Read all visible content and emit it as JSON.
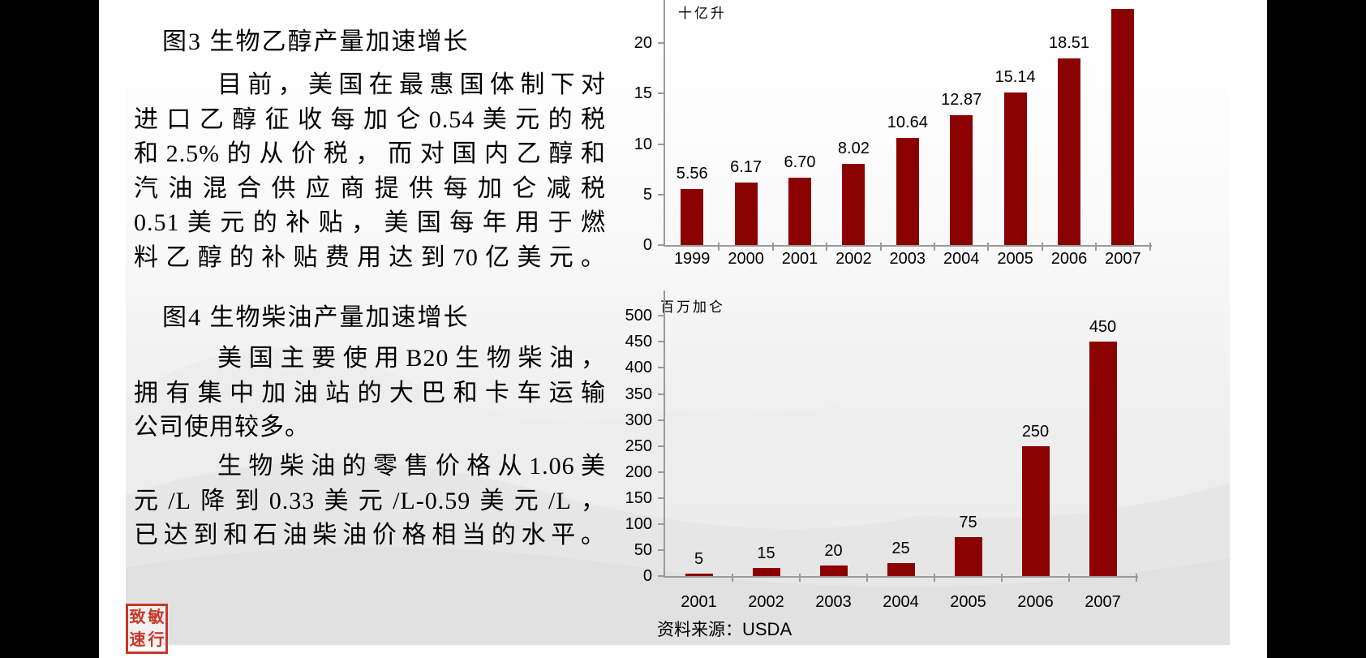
{
  "left_panel": {
    "fig3_title": "图3 生物乙醇产量加速增长",
    "fig3_paragraph_lines": [
      "目前，美国在最惠国体制下对",
      "进口乙醇征收每加仑0.54美元的税",
      "和2.5%的从价税，而对国内乙醇和",
      "汽油混合供应商提供每加仑减税",
      "0.51美元的补贴，美国每年用于燃",
      "料乙醇的补贴费用达到70亿美元。"
    ],
    "fig4_title": "图4 生物柴油产量加速增长",
    "fig4_paragraph1_lines": [
      "美国主要使用B20生物柴油，",
      "拥有集中加油站的大巴和卡车运输",
      "公司使用较多。"
    ],
    "fig4_paragraph2_lines": [
      "生物柴油的零售价格从1.06美",
      "元/L降到0.33美元/L-0.59美元/L，",
      "已达到和石油柴油价格相当的水平。"
    ],
    "seal_chars": [
      "致",
      "敏",
      "速",
      "行"
    ]
  },
  "source": {
    "label": "资料来源：",
    "value": "USDA"
  },
  "colors": {
    "bar": "#8B0000",
    "axis": "#9a9a9a",
    "seal_red": "#c5392a"
  },
  "chart_data": [
    {
      "type": "bar",
      "title": "图3 生物乙醇产量加速增长",
      "unit_label": "十亿升",
      "categories": [
        "1999",
        "2000",
        "2001",
        "2002",
        "2003",
        "2004",
        "2005",
        "2006",
        "2007"
      ],
      "values": [
        5.56,
        6.17,
        6.7,
        8.02,
        10.64,
        12.87,
        15.14,
        18.51,
        23.4
      ],
      "data_labels": [
        "5.56",
        "6.17",
        "6.70",
        "8.02",
        "10.64",
        "12.87",
        "15.14",
        "18.51",
        ""
      ],
      "yticks": [
        0,
        5,
        10,
        15,
        20
      ],
      "ylim": [
        0,
        23.5
      ],
      "xlabel": "",
      "ylabel": "十亿升",
      "grid": false,
      "legend": "none",
      "bar_color": "#8B0000"
    },
    {
      "type": "bar",
      "title": "图4 生物柴油产量加速增长",
      "unit_label": "百万加仑",
      "categories": [
        "2001",
        "2002",
        "2003",
        "2004",
        "2005",
        "2006",
        "2007"
      ],
      "values": [
        5,
        15,
        20,
        25,
        75,
        250,
        450
      ],
      "data_labels": [
        "5",
        "15",
        "20",
        "25",
        "75",
        "250",
        "450"
      ],
      "yticks": [
        0,
        50,
        100,
        150,
        200,
        250,
        300,
        350,
        400,
        450,
        500
      ],
      "ylim": [
        0,
        500
      ],
      "xlabel": "",
      "ylabel": "百万加仑",
      "grid": false,
      "legend": "none",
      "bar_color": "#8B0000"
    }
  ]
}
